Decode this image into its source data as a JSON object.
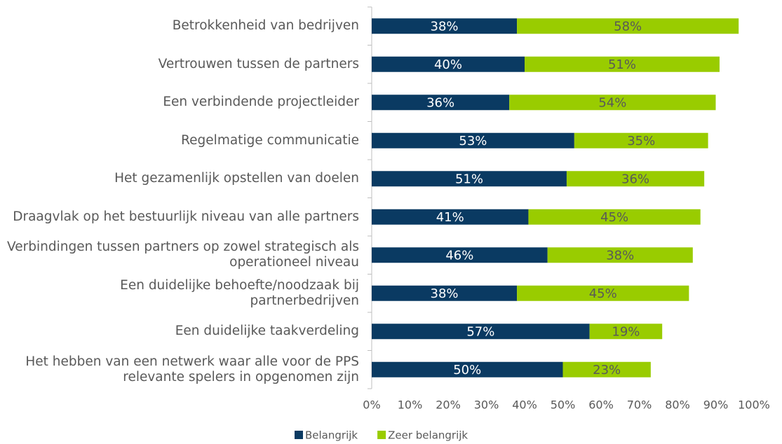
{
  "chart_data": {
    "type": "stacked-barh",
    "categories": [
      "Betrokkenheid van bedrijven",
      "Vertrouwen tussen de partners",
      "Een verbindende projectleider",
      "Regelmatige communicatie",
      "Het gezamenlijk opstellen van doelen",
      "Draagvlak op het bestuurlijk niveau van alle partners",
      "Verbindingen tussen partners op zowel strategisch als operationeel niveau",
      "Een duidelijke behoefte/noodzaak bij partnerbedrijven",
      "Een duidelijke taakverdeling",
      "Het hebben van een netwerk waar alle voor de PPS relevante spelers in opgenomen zijn"
    ],
    "series": [
      {
        "name": "Belangrijk",
        "color": "#0a3a62",
        "label_color": "#ffffff",
        "values": [
          38,
          40,
          36,
          53,
          51,
          41,
          46,
          38,
          57,
          50
        ],
        "value_labels": [
          "38%",
          "40%",
          "36%",
          "53%",
          "51%",
          "41%",
          "46%",
          "38%",
          "57%",
          "50%"
        ]
      },
      {
        "name": "Zeer belangrijk",
        "color": "#99cc00",
        "label_color": "#595959",
        "values": [
          58,
          51,
          54,
          35,
          36,
          45,
          38,
          45,
          19,
          23
        ],
        "value_labels": [
          "58%",
          "51%",
          "54%",
          "35%",
          "36%",
          "45%",
          "38%",
          "45%",
          "19%",
          "23%"
        ]
      }
    ],
    "xlim": [
      0,
      100
    ],
    "xticks": [
      {
        "value": 0,
        "label": "0%"
      },
      {
        "value": 10,
        "label": "10%"
      },
      {
        "value": 20,
        "label": "20%"
      },
      {
        "value": 30,
        "label": "30%"
      },
      {
        "value": 40,
        "label": "40%"
      },
      {
        "value": 50,
        "label": "50%"
      },
      {
        "value": 60,
        "label": "60%"
      },
      {
        "value": 70,
        "label": "70%"
      },
      {
        "value": 80,
        "label": "80%"
      },
      {
        "value": 90,
        "label": "90%"
      },
      {
        "value": 100,
        "label": "100%"
      }
    ],
    "grid": false,
    "legend": "bottom"
  }
}
